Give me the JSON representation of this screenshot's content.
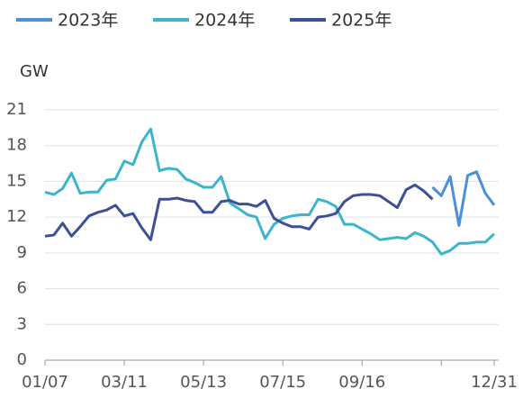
{
  "chart_data": {
    "type": "line",
    "y_label": "GW",
    "categories": [
      "01/07",
      null,
      null,
      null,
      null,
      null,
      null,
      null,
      null,
      "03/11",
      null,
      null,
      null,
      null,
      null,
      null,
      null,
      null,
      "05/13",
      null,
      null,
      null,
      null,
      null,
      null,
      null,
      null,
      "07/15",
      null,
      null,
      null,
      null,
      null,
      null,
      null,
      null,
      "09/16",
      null,
      null,
      null,
      null,
      null,
      null,
      null,
      null,
      null,
      null,
      null,
      null,
      null,
      null,
      "12/31"
    ],
    "series": [
      {
        "name": "2023年",
        "color": "#4a8fd8",
        "values": [
          null,
          null,
          null,
          null,
          null,
          null,
          null,
          null,
          null,
          null,
          null,
          null,
          null,
          null,
          null,
          null,
          null,
          null,
          null,
          null,
          null,
          null,
          null,
          null,
          null,
          null,
          null,
          null,
          null,
          null,
          null,
          null,
          null,
          null,
          null,
          null,
          null,
          null,
          null,
          null,
          null,
          null,
          null,
          null,
          14.5,
          13.8,
          15.4,
          11.3,
          15.5,
          15.8,
          14.0,
          13.0
        ]
      },
      {
        "name": "2024年",
        "color": "#3ab5cc",
        "values": [
          14.1,
          13.9,
          14.4,
          15.7,
          14.0,
          14.1,
          14.1,
          15.1,
          15.2,
          16.7,
          16.4,
          18.3,
          19.4,
          15.9,
          16.1,
          16.0,
          15.2,
          14.9,
          14.5,
          14.5,
          15.4,
          13.2,
          12.7,
          12.2,
          12.0,
          10.2,
          11.4,
          11.9,
          12.1,
          12.2,
          12.2,
          13.5,
          13.3,
          12.9,
          11.4,
          11.4,
          11.0,
          10.6,
          10.1,
          10.2,
          10.3,
          10.2,
          10.7,
          10.4,
          9.9,
          8.9,
          9.2,
          9.8,
          9.8,
          9.9,
          9.9,
          10.6
        ]
      },
      {
        "name": "2025年",
        "color": "#3d4f96",
        "values": [
          10.4,
          10.5,
          11.5,
          10.4,
          11.2,
          12.1,
          12.4,
          12.6,
          13.0,
          12.1,
          12.3,
          11.1,
          10.1,
          13.5,
          13.5,
          13.6,
          13.4,
          13.3,
          12.4,
          12.4,
          13.3,
          13.4,
          13.1,
          13.1,
          12.9,
          13.4,
          11.9,
          11.5,
          11.2,
          11.2,
          11.0,
          12.0,
          12.1,
          12.3,
          13.3,
          13.8,
          13.9,
          13.9,
          13.8,
          13.3,
          12.8,
          14.3,
          14.7,
          14.2,
          13.5,
          null,
          null,
          null,
          null,
          null,
          null,
          null
        ]
      }
    ],
    "ylim": [
      0,
      21
    ],
    "yticks": [
      0,
      3,
      6,
      9,
      12,
      15,
      18,
      21
    ],
    "grid": true
  }
}
